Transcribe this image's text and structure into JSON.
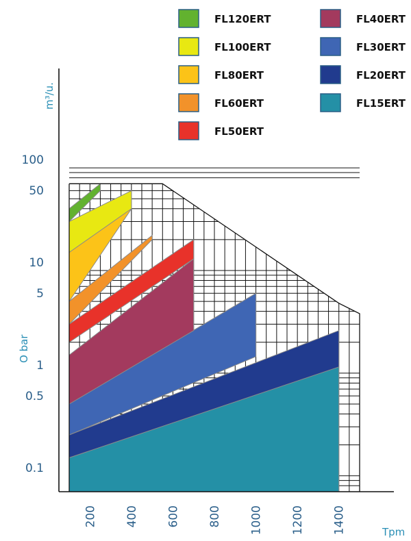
{
  "chart_data": {
    "type": "area",
    "title": "",
    "xlabel": "Tpm",
    "ylabel_top": "m³/u.",
    "ylabel_side": "O bar",
    "x_scale": "linear",
    "y_scale": "log",
    "xlim": [
      100,
      1500
    ],
    "ylim": [
      0.07,
      200
    ],
    "x_ticks": [
      200,
      400,
      600,
      800,
      1000,
      1200,
      1400
    ],
    "x_tick_labels": [
      "200",
      "400",
      "600",
      "800",
      "1000",
      "1200",
      "1400"
    ],
    "y_ticks": [
      0.1,
      0.5,
      1,
      5,
      10,
      50,
      100
    ],
    "y_tick_labels": [
      "0.1",
      "0.5",
      "1",
      "5",
      "10",
      "50",
      "100"
    ],
    "grid": true,
    "legend_position": "top-right",
    "series": [
      {
        "name": "FL15ERT",
        "color": "#2490a6",
        "x": [
          100,
          1400
        ],
        "lower": [
          0.07,
          0.07
        ],
        "upper": [
          0.15,
          1.15
        ]
      },
      {
        "name": "FL20ERT",
        "color": "#213b8e",
        "x": [
          100,
          1400
        ],
        "lower": [
          0.15,
          1.15
        ],
        "upper": [
          0.25,
          2.6
        ]
      },
      {
        "name": "FL30ERT",
        "color": "#3f66b4",
        "x": [
          100,
          1000
        ],
        "lower": [
          0.25,
          1.45
        ],
        "upper": [
          0.5,
          6.0
        ]
      },
      {
        "name": "FL40ERT",
        "color": "#a33a5e",
        "x": [
          100,
          700
        ],
        "lower": [
          0.5,
          2.6
        ],
        "upper": [
          1.5,
          13.0
        ]
      },
      {
        "name": "FL50ERT",
        "color": "#e8322a",
        "x": [
          100,
          700
        ],
        "lower": [
          2.0,
          13.0
        ],
        "upper": [
          3.0,
          20.0
        ]
      },
      {
        "name": "FL60ERT",
        "color": "#f2922a",
        "x": [
          100,
          500
        ],
        "lower": [
          3.0,
          20.0
        ],
        "upper": [
          5.0,
          22.0
        ]
      },
      {
        "name": "FL80ERT",
        "color": "#fcc318",
        "x": [
          100,
          400
        ],
        "lower": [
          5.0,
          40.0
        ],
        "upper": [
          15.0,
          60.0
        ]
      },
      {
        "name": "FL100ERT",
        "color": "#e8e812",
        "x": [
          100,
          400
        ],
        "lower": [
          15.0,
          40.0
        ],
        "upper": [
          30.0,
          60.0
        ]
      },
      {
        "name": "FL120ERT",
        "color": "#62b22f",
        "x": [
          100,
          250
        ],
        "lower": [
          30.0,
          60.0
        ],
        "upper": [
          40.0,
          70.0
        ]
      }
    ],
    "envelope": {
      "x": [
        100,
        550,
        1400,
        1500,
        1500
      ],
      "y": [
        70,
        70,
        4.8,
        3.8,
        0.07
      ]
    }
  },
  "legend": {
    "items": [
      {
        "label": "FL120ERT",
        "color": "#62b22f"
      },
      {
        "label": "FL100ERT",
        "color": "#e8e812"
      },
      {
        "label": "FL80ERT",
        "color": "#fcc318"
      },
      {
        "label": "FL60ERT",
        "color": "#f2922a"
      },
      {
        "label": "FL50ERT",
        "color": "#e8322a"
      },
      {
        "label": "FL40ERT",
        "color": "#a33a5e"
      },
      {
        "label": "FL30ERT",
        "color": "#3f66b4"
      },
      {
        "label": "FL20ERT",
        "color": "#213b8e"
      },
      {
        "label": "FL15ERT",
        "color": "#2490a6"
      }
    ]
  }
}
